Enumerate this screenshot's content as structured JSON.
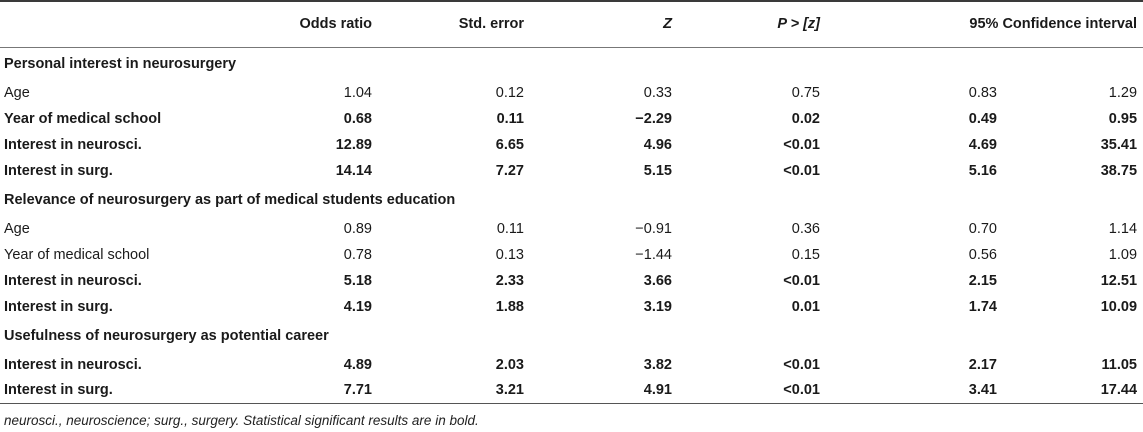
{
  "headers": [
    "",
    "Odds ratio",
    "Std. error",
    "Z",
    "P > [z]",
    "95% Confidence interval"
  ],
  "groups": [
    {
      "title": "Personal interest in neurosurgery",
      "rows": [
        {
          "label": "Age",
          "or": "1.04",
          "se": "0.12",
          "z": "0.33",
          "p": "0.75",
          "lo": "0.83",
          "hi": "1.29",
          "sig": false
        },
        {
          "label": "Year of medical school",
          "or": "0.68",
          "se": "0.11",
          "z": "−2.29",
          "p": "0.02",
          "lo": "0.49",
          "hi": "0.95",
          "sig": true
        },
        {
          "label": "Interest in neurosci.",
          "or": "12.89",
          "se": "6.65",
          "z": "4.96",
          "p": "<0.01",
          "lo": "4.69",
          "hi": "35.41",
          "sig": true
        },
        {
          "label": "Interest in surg.",
          "or": "14.14",
          "se": "7.27",
          "z": "5.15",
          "p": "<0.01",
          "lo": "5.16",
          "hi": "38.75",
          "sig": true
        }
      ]
    },
    {
      "title": "Relevance of neurosurgery as part of medical students education",
      "rows": [
        {
          "label": "Age",
          "or": "0.89",
          "se": "0.11",
          "z": "−0.91",
          "p": "0.36",
          "lo": "0.70",
          "hi": "1.14",
          "sig": false
        },
        {
          "label": "Year of medical school",
          "or": "0.78",
          "se": "0.13",
          "z": "−1.44",
          "p": "0.15",
          "lo": "0.56",
          "hi": "1.09",
          "sig": false
        },
        {
          "label": "Interest in neurosci.",
          "or": "5.18",
          "se": "2.33",
          "z": "3.66",
          "p": "<0.01",
          "lo": "2.15",
          "hi": "12.51",
          "sig": true
        },
        {
          "label": "Interest in surg.",
          "or": "4.19",
          "se": "1.88",
          "z": "3.19",
          "p": "0.01",
          "lo": "1.74",
          "hi": "10.09",
          "sig": true
        }
      ]
    },
    {
      "title": "Usefulness of neurosurgery as potential career",
      "rows": [
        {
          "label": "Interest in neurosci.",
          "or": "4.89",
          "se": "2.03",
          "z": "3.82",
          "p": "<0.01",
          "lo": "2.17",
          "hi": "11.05",
          "sig": true
        },
        {
          "label": "Interest in surg.",
          "or": "7.71",
          "se": "3.21",
          "z": "4.91",
          "p": "<0.01",
          "lo": "3.41",
          "hi": "17.44",
          "sig": true
        }
      ]
    }
  ],
  "footnote": "neurosci., neuroscience; surg., surgery. Statistical significant results are in bold."
}
